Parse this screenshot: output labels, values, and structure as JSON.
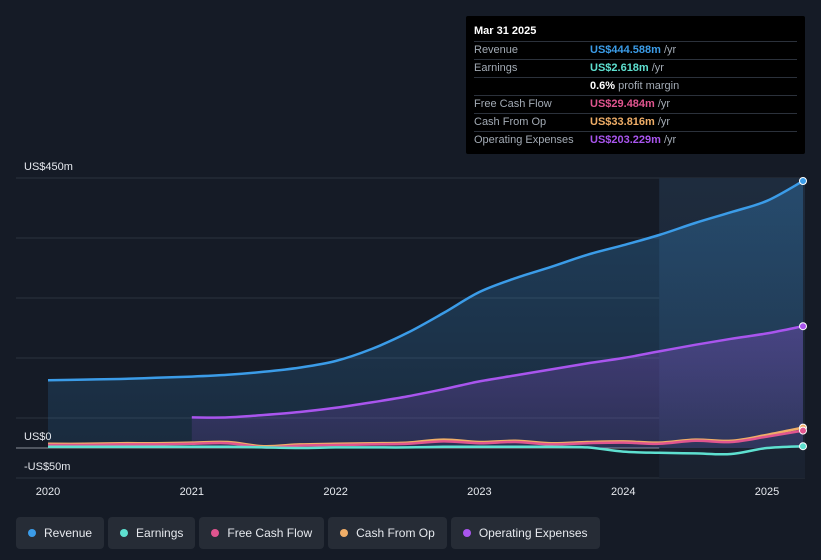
{
  "tooltip": {
    "date": "Mar 31 2025",
    "rows": [
      {
        "label": "Revenue",
        "value": "US$444.588m",
        "unit": "/yr",
        "color": "#3b9ce8"
      },
      {
        "label": "Earnings",
        "value": "US$2.618m",
        "unit": "/yr",
        "color": "#5ee0d0"
      },
      {
        "label": "",
        "value": "0.6%",
        "unit": "profit margin",
        "color": "#ffffff"
      },
      {
        "label": "Free Cash Flow",
        "value": "US$29.484m",
        "unit": "/yr",
        "color": "#e0558f"
      },
      {
        "label": "Cash From Op",
        "value": "US$33.816m",
        "unit": "/yr",
        "color": "#f0ae68"
      },
      {
        "label": "Operating Expenses",
        "value": "US$203.229m",
        "unit": "/yr",
        "color": "#a955ee"
      }
    ]
  },
  "legend": [
    {
      "label": "Revenue",
      "color": "#3b9ce8"
    },
    {
      "label": "Earnings",
      "color": "#5ee0d0"
    },
    {
      "label": "Free Cash Flow",
      "color": "#e0558f"
    },
    {
      "label": "Cash From Op",
      "color": "#f0ae68"
    },
    {
      "label": "Operating Expenses",
      "color": "#a955ee"
    }
  ],
  "chart_data": {
    "type": "line",
    "title": "",
    "ylim": [
      -50,
      450
    ],
    "y_tick_labels": [
      "US$450m",
      "US$0",
      "-US$50m"
    ],
    "xlim": [
      2020.0,
      2025.25
    ],
    "x_tick_labels": [
      "2020",
      "2021",
      "2022",
      "2023",
      "2024",
      "2025"
    ],
    "forecast_region_start": 2024.25,
    "series": [
      {
        "name": "Revenue",
        "color": "#3b9ce8",
        "fill": true,
        "x": [
          2020.0,
          2020.25,
          2020.5,
          2020.75,
          2021.0,
          2021.25,
          2021.5,
          2021.75,
          2022.0,
          2022.25,
          2022.5,
          2022.75,
          2023.0,
          2023.25,
          2023.5,
          2023.75,
          2024.0,
          2024.25,
          2024.5,
          2024.75,
          2025.0,
          2025.25
        ],
        "values": [
          113,
          114,
          115,
          117,
          119,
          122,
          127,
          134,
          145,
          165,
          192,
          225,
          260,
          283,
          302,
          322,
          338,
          355,
          375,
          393,
          412,
          445
        ]
      },
      {
        "name": "Operating Expenses",
        "color": "#a955ee",
        "fill": true,
        "x": [
          2021.0,
          2021.25,
          2021.5,
          2021.75,
          2022.0,
          2022.25,
          2022.5,
          2022.75,
          2023.0,
          2023.25,
          2023.5,
          2023.75,
          2024.0,
          2024.25,
          2024.5,
          2024.75,
          2025.0,
          2025.25
        ],
        "values": [
          51,
          51,
          55,
          60,
          67,
          76,
          86,
          98,
          111,
          121,
          131,
          141,
          150,
          161,
          172,
          182,
          191,
          203
        ]
      },
      {
        "name": "Cash From Op",
        "color": "#f0ae68",
        "fill": false,
        "x": [
          2020.0,
          2020.25,
          2020.5,
          2020.75,
          2021.0,
          2021.25,
          2021.5,
          2021.75,
          2022.0,
          2022.25,
          2022.5,
          2022.75,
          2023.0,
          2023.25,
          2023.5,
          2023.75,
          2024.0,
          2024.25,
          2024.5,
          2024.75,
          2025.0,
          2025.25
        ],
        "values": [
          7,
          7,
          8,
          8,
          9,
          10,
          3,
          6,
          7,
          8,
          9,
          14,
          10,
          12,
          8,
          10,
          11,
          9,
          14,
          12,
          22,
          34
        ]
      },
      {
        "name": "Free Cash Flow",
        "color": "#e0558f",
        "fill": false,
        "x": [
          2020.0,
          2020.25,
          2020.5,
          2020.75,
          2021.0,
          2021.25,
          2021.5,
          2021.75,
          2022.0,
          2022.25,
          2022.5,
          2022.75,
          2023.0,
          2023.25,
          2023.5,
          2023.75,
          2024.0,
          2024.25,
          2024.5,
          2024.75,
          2025.0,
          2025.25
        ],
        "values": [
          5,
          5,
          6,
          6,
          7,
          8,
          1,
          4,
          5,
          6,
          7,
          11,
          8,
          10,
          6,
          8,
          9,
          7,
          12,
          10,
          19,
          29
        ]
      },
      {
        "name": "Earnings",
        "color": "#5ee0d0",
        "fill": false,
        "x": [
          2020.0,
          2020.25,
          2020.5,
          2020.75,
          2021.0,
          2021.25,
          2021.5,
          2021.75,
          2022.0,
          2022.25,
          2022.5,
          2022.75,
          2023.0,
          2023.25,
          2023.5,
          2023.75,
          2024.0,
          2024.25,
          2024.5,
          2024.75,
          2025.0,
          2025.25
        ],
        "values": [
          2,
          2,
          2,
          2,
          2,
          2,
          1,
          0,
          1,
          1,
          1,
          2,
          2,
          2,
          2,
          1,
          -6,
          -8,
          -9,
          -10,
          0,
          3
        ]
      }
    ]
  }
}
